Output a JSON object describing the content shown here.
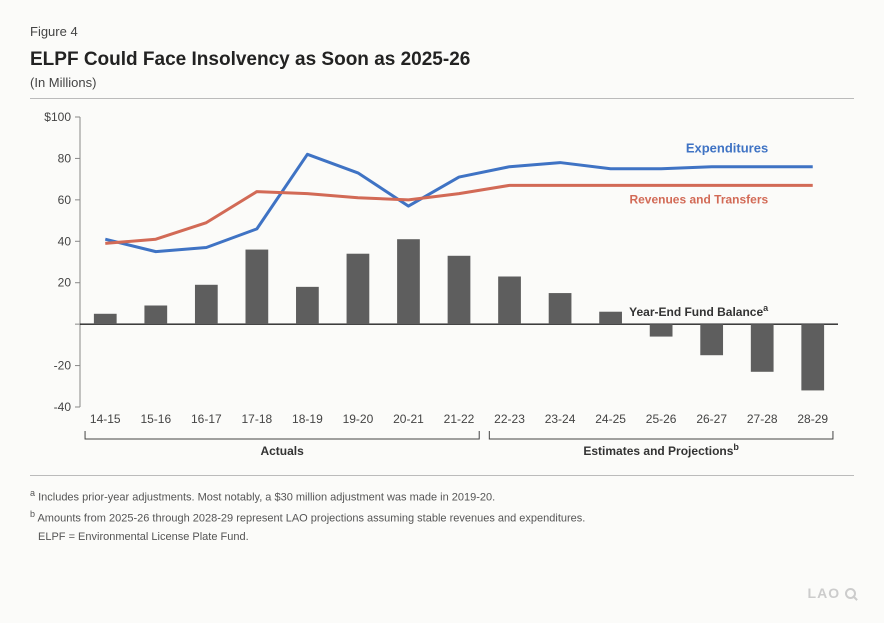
{
  "figure_label": "Figure 4",
  "title": "ELPF Could Face Insolvency as Soon as 2025-26",
  "subtitle": "(In Millions)",
  "chart": {
    "background_color": "#fbfbf9",
    "categories": [
      "14-15",
      "15-16",
      "16-17",
      "17-18",
      "18-19",
      "19-20",
      "20-21",
      "21-22",
      "22-23",
      "23-24",
      "24-25",
      "25-26",
      "26-27",
      "27-28",
      "28-29"
    ],
    "ylim": [
      -40,
      100
    ],
    "ytick_step": 20,
    "ytick_labels": [
      "-40",
      "-20",
      "",
      "20",
      "40",
      "60",
      "80",
      "$100"
    ],
    "axis_color": "#888888",
    "tick_font_size": 12,
    "tick_color": "#444444",
    "bars": {
      "label": "Year-End Fund Balance",
      "label_sup": "a",
      "color": "#5e5e5e",
      "width": 0.45,
      "values": [
        5,
        9,
        19,
        36,
        18,
        34,
        41,
        33,
        23,
        15,
        6,
        -6,
        -15,
        -23,
        -32
      ]
    },
    "lines": [
      {
        "label": "Expenditures",
        "color": "#3f73c4",
        "width": 3,
        "values": [
          41,
          35,
          37,
          46,
          82,
          73,
          57,
          71,
          76,
          78,
          75,
          75,
          76,
          76,
          76
        ]
      },
      {
        "label": "Revenues and Transfers",
        "color": "#d26a56",
        "width": 3,
        "values": [
          39,
          41,
          49,
          64,
          63,
          61,
          60,
          63,
          67,
          67,
          67,
          67,
          67,
          67,
          67
        ]
      }
    ],
    "series_label_fontsize": 12,
    "series_label_weight": "bold",
    "group_labels": {
      "actuals": {
        "text": "Actuals",
        "start": 0,
        "end": 7
      },
      "projections": {
        "text": "Estimates and Projections",
        "sup": "b",
        "start": 8,
        "end": 14
      }
    },
    "group_label_fontsize": 12,
    "group_label_weight": "bold"
  },
  "footnotes": {
    "a": "Includes prior-year adjustments. Most notably, a $30 million adjustment was made in 2019-20.",
    "b": "Amounts from 2025-26 through 2028-29 represent LAO projections assuming stable revenues and expenditures.",
    "elpf": "ELPF = Environmental License Plate Fund."
  },
  "watermark": "LAO"
}
